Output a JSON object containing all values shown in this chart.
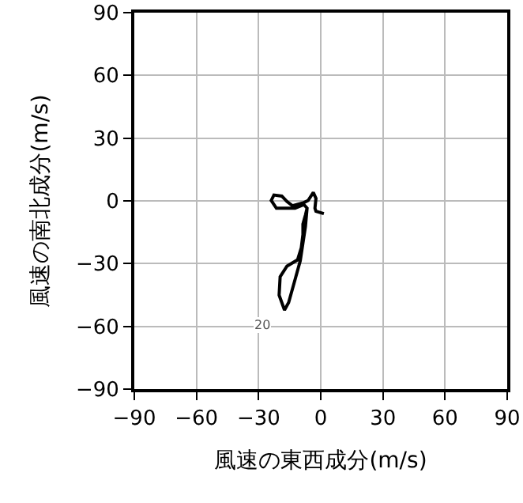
{
  "chart_data": {
    "type": "line",
    "xlabel": "風速の東西成分(m/s)",
    "ylabel": "風速の南北成分(m/s)",
    "series": [
      {
        "color": "#000000",
        "x": [
          1.5,
          -2.3,
          -2.8,
          -2.3,
          -3.6,
          -6.1,
          -8.1,
          -13.7,
          -16.3,
          -18.8,
          -22.6,
          -23.9,
          -21.4,
          -17.5,
          -12.4,
          -8.1,
          -6.6,
          -7.4,
          -9.9,
          -12.4,
          -15.5,
          -17.5,
          -20.1,
          -19.6,
          -16.3,
          -11.2,
          -9.4,
          -8.6,
          -8.6,
          -7.4,
          -6.6
        ],
        "values": [
          -6.1,
          -5.0,
          -3.5,
          1.2,
          4.0,
          0.2,
          -0.8,
          -2.3,
          -0.3,
          2.3,
          2.8,
          0.2,
          -3.5,
          -3.5,
          -3.5,
          -1.8,
          -3.5,
          -12.3,
          -28.7,
          -37.6,
          -48.6,
          -52.2,
          -45.1,
          -36.3,
          -31.2,
          -28.2,
          -22.4,
          -16.1,
          -11.1,
          -6.8,
          -3.5
        ]
      }
    ],
    "annotations": [
      "20"
    ],
    "xlim": [
      -90,
      90
    ],
    "ylim": [
      -90,
      90
    ],
    "xticks": [
      {
        "value": -90,
        "label": "−90"
      },
      {
        "value": -60,
        "label": "−60"
      },
      {
        "value": -30,
        "label": "−30"
      },
      0,
      30,
      60,
      90
    ],
    "yticks": [
      90,
      60,
      30,
      0,
      {
        "value": -30,
        "label": "−30"
      },
      {
        "value": -60,
        "label": "−60"
      },
      {
        "value": -90,
        "label": "−90"
      }
    ],
    "grid": true,
    "marker": "none",
    "line_style": "solid"
  }
}
